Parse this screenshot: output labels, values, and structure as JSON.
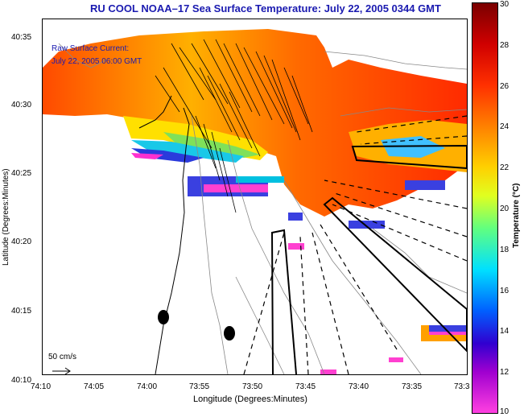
{
  "title": "RU COOL  NOAA–17  Sea Surface Temperature:  July 22, 2005 0344 GMT",
  "annotation": {
    "line1": "Raw Surface Current:",
    "line2": "July 22, 2005 06:00 GMT"
  },
  "scale_label": "50 cm/s",
  "axes": {
    "xlabel": "Longitude (Degrees:Minutes)",
    "ylabel": "Latitude (Degrees:Minutes)",
    "x_ticks": [
      "74:10",
      "74:05",
      "74:00",
      "73:55",
      "73:50",
      "73:45",
      "73:40",
      "73:35",
      "73:3"
    ],
    "y_ticks": [
      "40:35",
      "40:30",
      "40:25",
      "40:20",
      "40:15",
      "40:10"
    ]
  },
  "colorbar": {
    "label": "Temperature (°C)",
    "ticks": [
      "30",
      "28",
      "26",
      "24",
      "22",
      "20",
      "18",
      "16",
      "14",
      "12",
      "10"
    ],
    "range": [
      10,
      30
    ]
  },
  "colors": {
    "title": "#1a1ab0",
    "warm": "#ff3a00",
    "mid": "#ff9a00",
    "cool": "#00b0ff"
  }
}
